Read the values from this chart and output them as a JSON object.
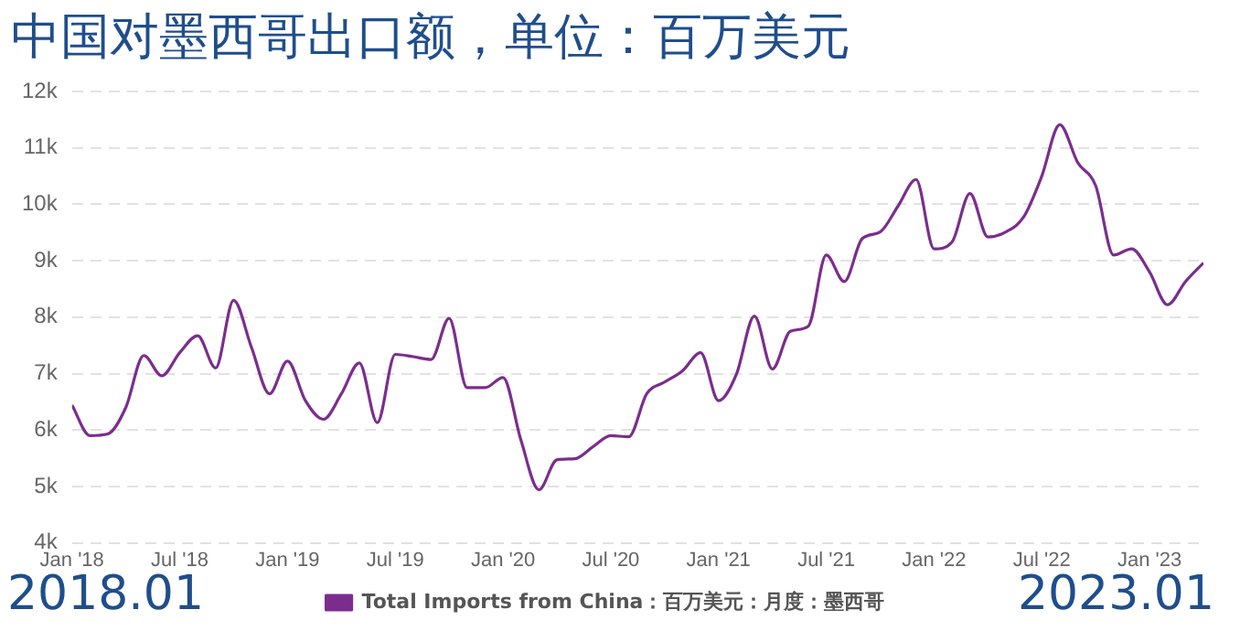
{
  "chart_data": {
    "type": "line",
    "title": "中国对墨西哥出口额，单位：百万美元",
    "x": [
      "2018-01",
      "2018-02",
      "2018-03",
      "2018-04",
      "2018-05",
      "2018-06",
      "2018-07",
      "2018-08",
      "2018-09",
      "2018-10",
      "2018-11",
      "2018-12",
      "2019-01",
      "2019-02",
      "2019-03",
      "2019-04",
      "2019-05",
      "2019-06",
      "2019-07",
      "2019-08",
      "2019-09",
      "2019-10",
      "2019-11",
      "2019-12",
      "2020-01",
      "2020-02",
      "2020-03",
      "2020-04",
      "2020-05",
      "2020-06",
      "2020-07",
      "2020-08",
      "2020-09",
      "2020-10",
      "2020-11",
      "2020-12",
      "2021-01",
      "2021-02",
      "2021-03",
      "2021-04",
      "2021-05",
      "2021-06",
      "2021-07",
      "2021-08",
      "2021-09",
      "2021-10",
      "2021-11",
      "2021-12",
      "2022-01",
      "2022-02",
      "2022-03",
      "2022-04",
      "2022-05",
      "2022-06",
      "2022-07",
      "2022-08",
      "2022-09",
      "2022-10",
      "2022-11",
      "2022-12",
      "2023-01",
      "2023-02",
      "2023-03",
      "2023-04"
    ],
    "series": [
      {
        "name": "Total Imports from China：百万美元：月度：墨西哥",
        "color": "#7b2d8e",
        "values": [
          6440,
          5900,
          5930,
          6400,
          7320,
          6960,
          7370,
          7670,
          7100,
          8300,
          7460,
          6640,
          7220,
          6520,
          6190,
          6640,
          7190,
          6130,
          7340,
          7300,
          7250,
          7980,
          6750,
          6750,
          6930,
          5820,
          4940,
          5470,
          5490,
          5700,
          5900,
          5880,
          6640,
          6850,
          7050,
          7370,
          6520,
          6990,
          8020,
          7080,
          7750,
          7840,
          9100,
          8630,
          9390,
          9510,
          9970,
          10440,
          9210,
          9330,
          10190,
          9420,
          9510,
          9780,
          10500,
          11410,
          10740,
          10330,
          9100,
          9210,
          8800,
          8220,
          8630,
          8960
        ]
      }
    ],
    "xlim": [
      "2018-01",
      "2023-04"
    ],
    "xticks": [
      {
        "value": "2018-01",
        "label": "Jan '18"
      },
      {
        "value": "2018-07",
        "label": "Jul '18"
      },
      {
        "value": "2019-01",
        "label": "Jan '19"
      },
      {
        "value": "2019-07",
        "label": "Jul '19"
      },
      {
        "value": "2020-01",
        "label": "Jan '20"
      },
      {
        "value": "2020-07",
        "label": "Jul '20"
      },
      {
        "value": "2021-01",
        "label": "Jan '21"
      },
      {
        "value": "2021-07",
        "label": "Jul '21"
      },
      {
        "value": "2022-01",
        "label": "Jan '22"
      },
      {
        "value": "2022-07",
        "label": "Jul '22"
      },
      {
        "value": "2023-01",
        "label": "Jan '23"
      }
    ],
    "ylim": [
      4000,
      12000
    ],
    "yticks": [
      {
        "value": 4000,
        "label": "4k"
      },
      {
        "value": 5000,
        "label": "5k"
      },
      {
        "value": 6000,
        "label": "6k"
      },
      {
        "value": 7000,
        "label": "7k"
      },
      {
        "value": 8000,
        "label": "8k"
      },
      {
        "value": 9000,
        "label": "9k"
      },
      {
        "value": 10000,
        "label": "10k"
      },
      {
        "value": 11000,
        "label": "11k"
      },
      {
        "value": 12000,
        "label": "12k"
      }
    ],
    "grid": "y",
    "legend": "bottom",
    "marker": "none",
    "line_style": "solid",
    "annotations": [
      "2018.01",
      "2023.01"
    ]
  }
}
